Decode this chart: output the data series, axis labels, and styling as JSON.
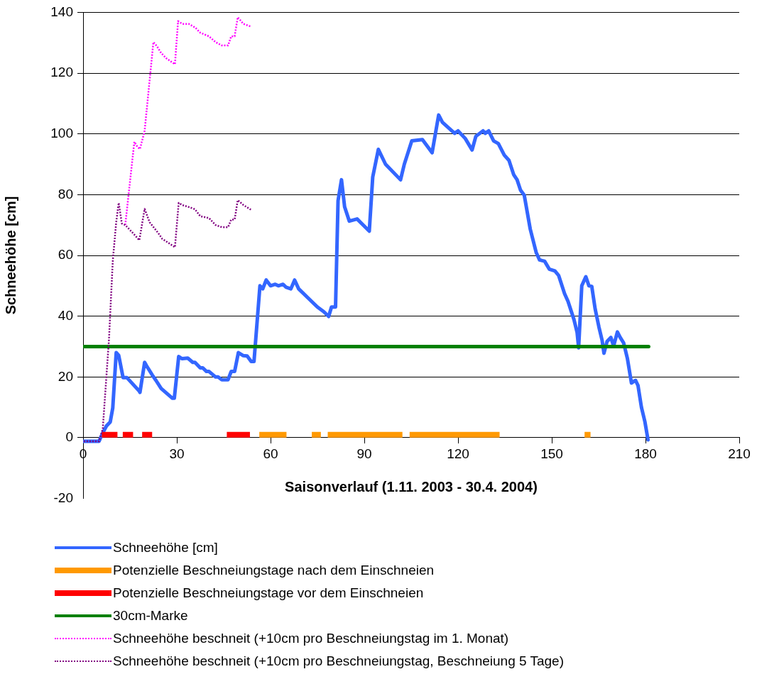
{
  "chart_data": {
    "type": "line",
    "xlabel": "Saisonverlauf (1.11. 2003 - 30.4. 2004)",
    "ylabel": "Schneehöhe [cm]",
    "xlim": [
      0,
      210
    ],
    "xticks": [
      0,
      30,
      60,
      90,
      120,
      150,
      180,
      210
    ],
    "ylim": [
      -20,
      140
    ],
    "yticks": [
      -20,
      0,
      20,
      40,
      60,
      80,
      100,
      120,
      140
    ],
    "grid": "y",
    "legend": "bottom",
    "marker": "none",
    "series": [
      {
        "name": "Schneehöhe [cm]",
        "color": "#3366ff",
        "line_style": "solid",
        "x": [
          0.2,
          5.1,
          6.3,
          7.5,
          8.7,
          9.5,
          10.6,
          11.4,
          12.8,
          14,
          18,
          18.2,
          19.7,
          20.3,
          22.1,
          23.3,
          25,
          28.6,
          29.2,
          30.6,
          31.7,
          33.5,
          35.1,
          35.8,
          37.5,
          38.3,
          39.5,
          40.3,
          42.4,
          43.2,
          44.4,
          46.4,
          47.4,
          48.5,
          49.7,
          51.3,
          52.5,
          53.8,
          54.7,
          56.6,
          57.5,
          58.6,
          60,
          61.5,
          62.5,
          64,
          65,
          66.5,
          67.7,
          69,
          72,
          75,
          77,
          78.6,
          79.5,
          80.8,
          81.6,
          82.7,
          83.7,
          85.2,
          87.7,
          91.6,
          92.7,
          94.5,
          96.8,
          101.6,
          102.8,
          105.2,
          108.6,
          111.7,
          113.8,
          115,
          118.9,
          120,
          122.3,
          124.5,
          125.7,
          128,
          128.7,
          129.8,
          131.4,
          132.9,
          134.8,
          136.3,
          137.8,
          138.9,
          140,
          141.2,
          143.1,
          145,
          146.1,
          147.7,
          149.2,
          151,
          152.2,
          154.1,
          155.2,
          157.1,
          158.1,
          158.6,
          159.6,
          160.9,
          161.9,
          162.8,
          163.9,
          165.1,
          166.1,
          166.7,
          167.7,
          168.9,
          169.8,
          171,
          171.9,
          173,
          174.2,
          175.5,
          176.8,
          177.6,
          178.7,
          179.8,
          180.8
        ],
        "values": [
          -1.2,
          -1.2,
          1.6,
          3.9,
          5.2,
          9.8,
          28,
          27.1,
          19.8,
          19.8,
          15.3,
          14.9,
          24.8,
          23.7,
          20.7,
          18.9,
          16.2,
          13,
          13,
          26.7,
          26,
          26.2,
          24.8,
          24.8,
          23,
          23,
          21.8,
          21.8,
          20,
          20,
          19.1,
          19.1,
          21.8,
          21.8,
          28,
          27,
          26.9,
          25.1,
          25.1,
          50,
          49,
          51.9,
          50,
          50.5,
          50,
          50.5,
          49.5,
          49,
          51.9,
          49,
          46,
          43,
          41.5,
          39.9,
          43,
          43,
          78,
          84.9,
          76,
          71.3,
          72,
          68,
          85.8,
          94.9,
          90,
          84.9,
          90,
          97.7,
          98.1,
          93.8,
          106.2,
          103.8,
          100.2,
          101,
          98.5,
          94.7,
          99.2,
          101,
          100.2,
          101,
          97.7,
          96.8,
          93,
          91.3,
          86.6,
          84.9,
          81.5,
          79.8,
          68.7,
          61,
          58.5,
          58.1,
          55.5,
          54.9,
          53.4,
          47.4,
          44.9,
          38.9,
          34.7,
          29.6,
          50,
          53,
          50,
          49.8,
          42.3,
          36.4,
          32.1,
          27.8,
          31.7,
          33,
          30.2,
          34.8,
          33,
          31.2,
          26.1,
          18,
          18.9,
          17.2,
          10,
          5.3,
          -0.7
        ]
      },
      {
        "name": "Potenzielle Beschneiungstage nach dem Einschneien",
        "color": "#ff9900",
        "line_style": "solid",
        "x": [
          56.4,
          65.1,
          66,
          73.2,
          76.1,
          77,
          78.3,
          102.2,
          103,
          104.5,
          133.3,
          134,
          160.5,
          162.4
        ],
        "values": [
          1,
          1,
          null,
          1,
          1,
          null,
          1,
          1,
          null,
          1,
          1,
          null,
          1,
          1
        ]
      },
      {
        "name": "Potenzielle Beschneiungstage vor dem Einschneien",
        "color": "#ff0000",
        "line_style": "solid",
        "x": [
          6,
          11,
          12,
          12.7,
          16,
          17,
          18.9,
          22.1,
          30,
          46,
          53.4
        ],
        "values": [
          1,
          1,
          null,
          1,
          1,
          null,
          1,
          1,
          null,
          1,
          1
        ]
      },
      {
        "name": "30cm-Marke",
        "color": "#008000",
        "line_style": "solid",
        "x": [
          0.2,
          181
        ],
        "values": [
          30,
          30
        ]
      },
      {
        "name": "Schneehöhe beschneit (+10cm pro Beschneiungstag im 1. Monat)",
        "color": "#ff00ff",
        "line_style": "dotted",
        "x": [
          13.5,
          16.4,
          17.4,
          18.2,
          19.7,
          22.5,
          23.6,
          25,
          26.6,
          29.4,
          30.4,
          31.8,
          33.8,
          35.9,
          37.5,
          40.3,
          42.4,
          44.4,
          46.4,
          47.4,
          48.5,
          49.5,
          51.3,
          53.8
        ],
        "values": [
          70,
          97.4,
          95.7,
          95,
          101,
          130.2,
          128.9,
          126.6,
          124.9,
          122.9,
          137.1,
          136.2,
          136.2,
          135,
          133.3,
          132.1,
          130.2,
          129.1,
          129.1,
          132.1,
          132.1,
          138.4,
          136.2,
          135.3
        ]
      },
      {
        "name": "Schneehöhe beschneit (+10cm pro Beschneiungstag, Beschneiung 5 Tage)",
        "color": "#800080",
        "line_style": "dotted",
        "x": [
          0.2,
          5.1,
          6.3,
          8.3,
          9.5,
          10.6,
          11.4,
          12.4,
          13.5,
          16,
          18,
          19.7,
          21.3,
          24.1,
          25.3,
          29.4,
          30.6,
          31.7,
          33.9,
          35.8,
          37.5,
          40.3,
          42.4,
          44.4,
          46.4,
          47.4,
          48.5,
          49.5,
          51.3,
          53.8
        ],
        "values": [
          -1.2,
          -1.2,
          2.9,
          32.6,
          58.2,
          70.9,
          77.3,
          70.5,
          70,
          67.3,
          65,
          75.3,
          70.9,
          67.3,
          65.5,
          62.7,
          77.3,
          76.6,
          75.9,
          75.2,
          72.9,
          72.3,
          70,
          69.3,
          69.3,
          71.8,
          71.8,
          78.2,
          76.6,
          75
        ]
      }
    ]
  }
}
